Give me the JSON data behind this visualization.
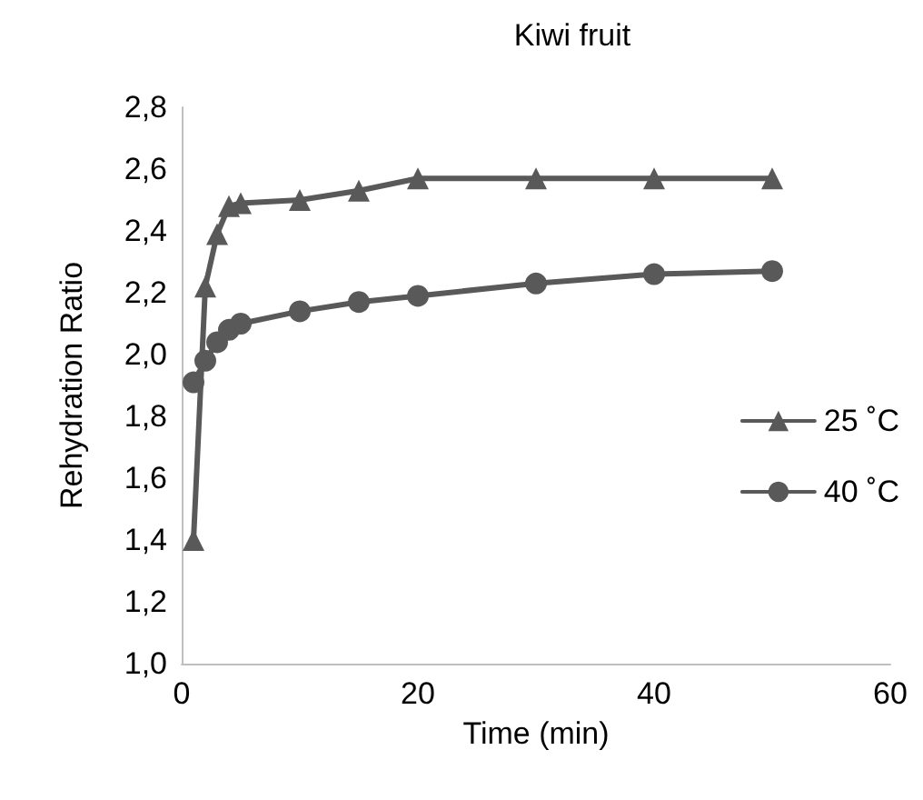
{
  "chart_data": {
    "type": "line",
    "title": "Kiwi fruit",
    "xlabel": "Time (min)",
    "ylabel": "Rehydration Ratio",
    "x": [
      1,
      2,
      3,
      4,
      5,
      10,
      15,
      20,
      30,
      40,
      50
    ],
    "series": [
      {
        "name": "25 ˚C",
        "color": "#595959",
        "marker": "triangle",
        "values": [
          1.4,
          2.22,
          2.39,
          2.48,
          2.49,
          2.5,
          2.53,
          2.57,
          2.57,
          2.57,
          2.57
        ]
      },
      {
        "name": "40 ˚C",
        "color": "#595959",
        "marker": "circle",
        "values": [
          1.91,
          1.98,
          2.04,
          2.08,
          2.1,
          2.14,
          2.17,
          2.19,
          2.23,
          2.26,
          2.27
        ]
      }
    ],
    "xlim": [
      0,
      60
    ],
    "xticks": [
      0,
      20,
      40,
      60
    ],
    "ylim": [
      1,
      2.8
    ],
    "yticks": [
      {
        "value": 1,
        "label": "1,0"
      },
      {
        "value": 1.2,
        "label": "1,2"
      },
      {
        "value": 1.4,
        "label": "1,4"
      },
      {
        "value": 1.6,
        "label": "1,6"
      },
      {
        "value": 1.8,
        "label": "1,8"
      },
      {
        "value": 2,
        "label": "2,0"
      },
      {
        "value": 2.2,
        "label": "2,2"
      },
      {
        "value": 2.4,
        "label": "2,4"
      },
      {
        "value": 2.6,
        "label": "2,6"
      },
      {
        "value": 2.8,
        "label": "2,8"
      }
    ],
    "grid": false,
    "legend": "right"
  }
}
